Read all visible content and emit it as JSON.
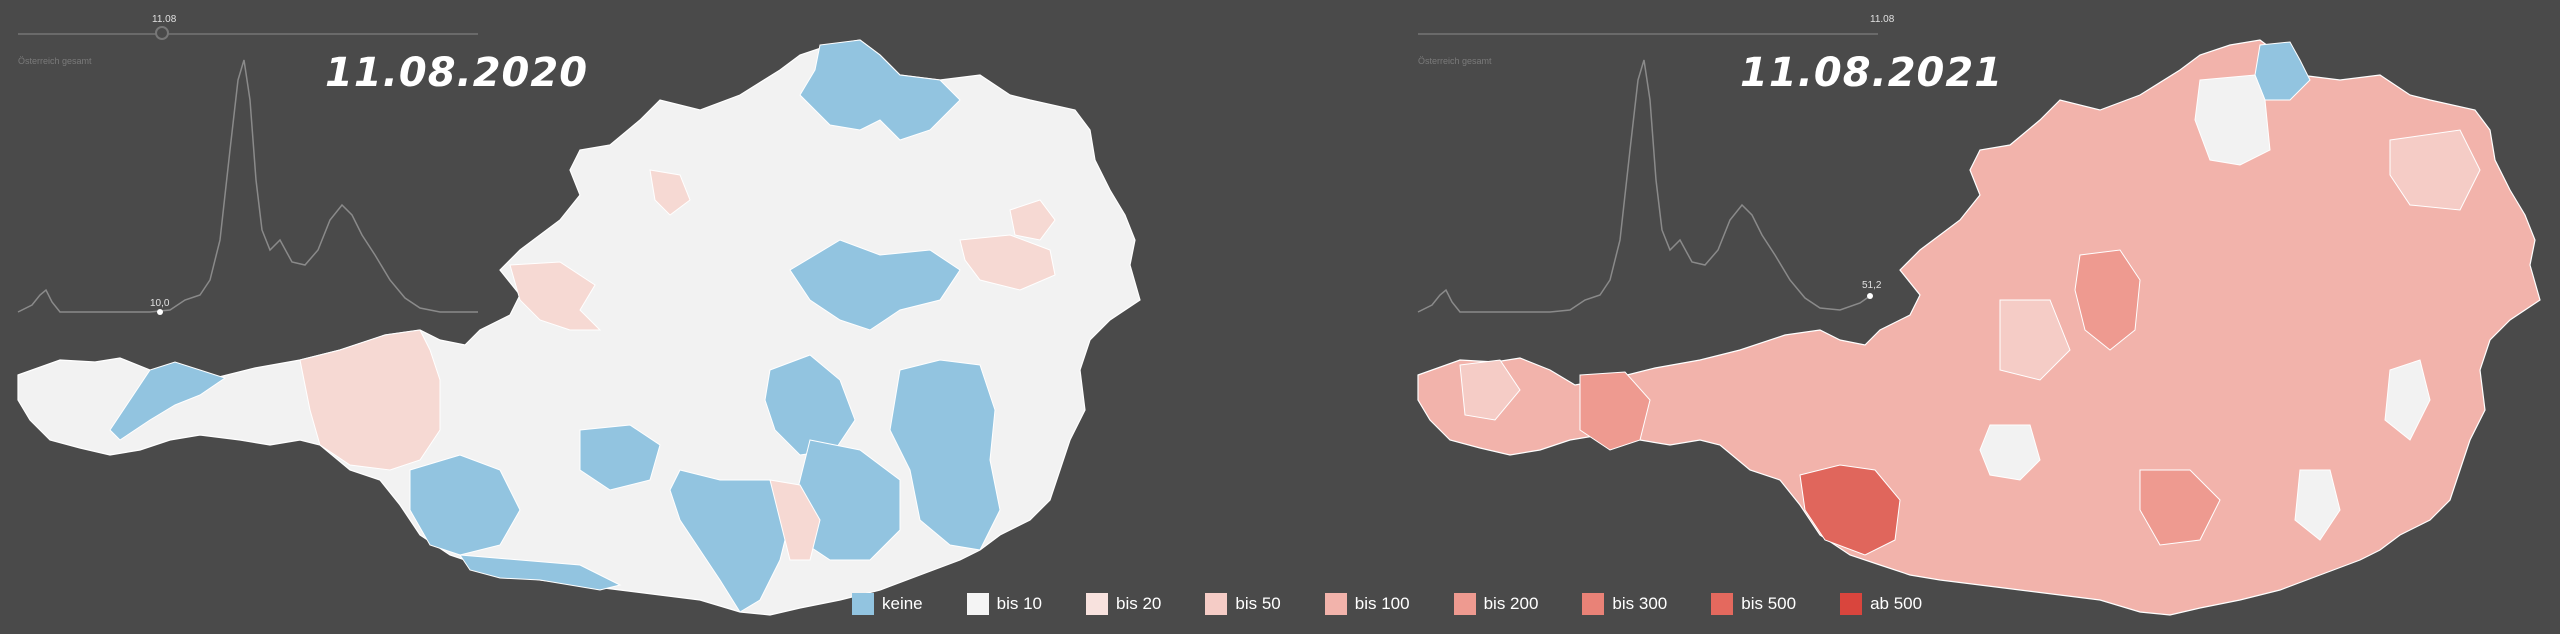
{
  "panels": [
    {
      "date_title": "11.08.2020",
      "slider_label": "11.08",
      "chart_caption": "Österreich gesamt",
      "chart_value": "10,0",
      "region_fill_main": "#f2f2f2",
      "accent_regions": [
        "#92c4e0",
        "#f6d9d3"
      ]
    },
    {
      "date_title": "11.08.2021",
      "slider_label": "11.08",
      "chart_caption": "Österreich gesamt",
      "chart_value": "51,2",
      "region_fill_main": "#f2b3ab",
      "accent_regions": [
        "#e0665c",
        "#92c4e0",
        "#f2f2f2"
      ]
    }
  ],
  "legend": [
    {
      "label": "keine",
      "color": "#92c4e0"
    },
    {
      "label": "bis 10",
      "color": "#f4f4f4"
    },
    {
      "label": "bis 20",
      "color": "#f8e2de"
    },
    {
      "label": "bis 50",
      "color": "#f5ccc6"
    },
    {
      "label": "bis 100",
      "color": "#f2b3ab"
    },
    {
      "label": "bis 200",
      "color": "#ee9a90"
    },
    {
      "label": "bis 300",
      "color": "#e98277"
    },
    {
      "label": "bis 500",
      "color": "#e4695e"
    },
    {
      "label": "ab 500",
      "color": "#d9453d"
    }
  ]
}
